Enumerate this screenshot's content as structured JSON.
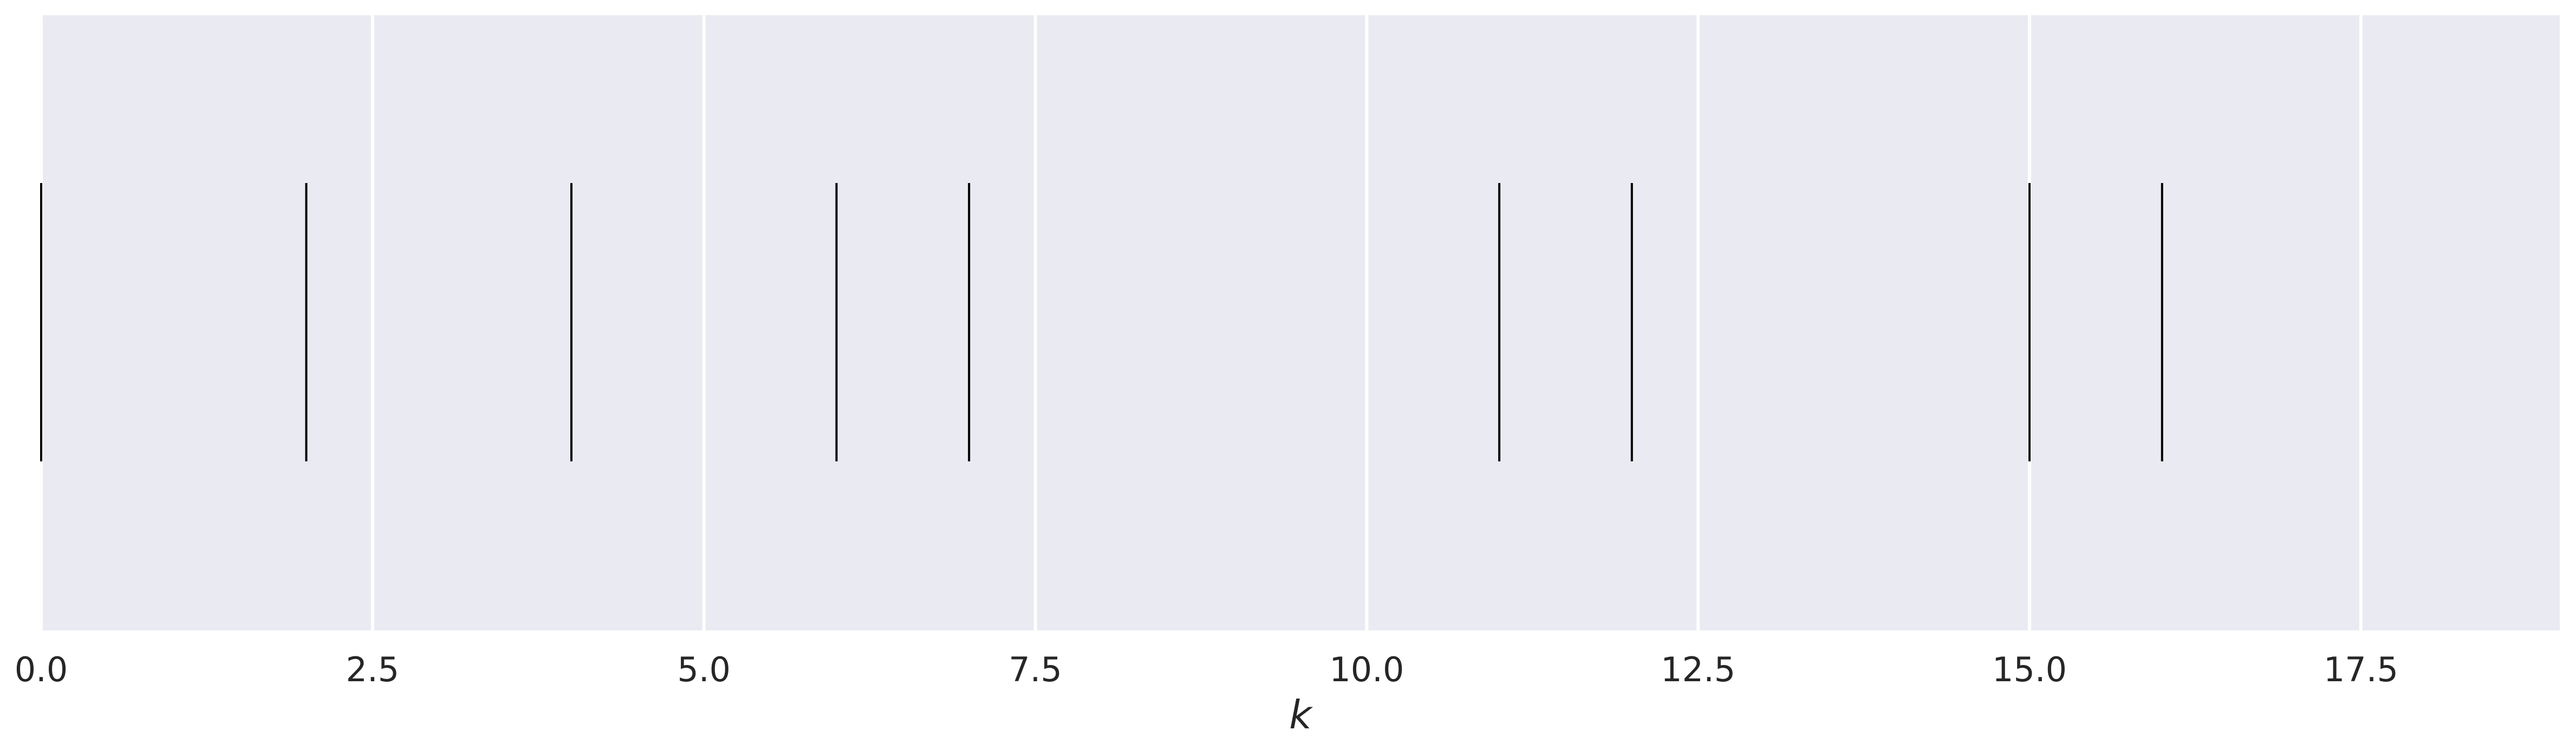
{
  "chart_data": {
    "type": "rug",
    "title": "",
    "xlabel": "k",
    "ylabel": "",
    "xlim": [
      0,
      19
    ],
    "grid": true,
    "x_ticks": [
      0.0,
      2.5,
      5.0,
      7.5,
      10.0,
      12.5,
      15.0,
      17.5
    ],
    "x_tick_labels": [
      "0.0",
      "2.5",
      "5.0",
      "7.5",
      "10.0",
      "12.5",
      "15.0",
      "17.5"
    ],
    "values": [
      0,
      2,
      4,
      6,
      7,
      11,
      12,
      15,
      16
    ],
    "background_color": "#eaeaf2",
    "grid_color": "#ffffff",
    "mark_color": "#000000"
  }
}
